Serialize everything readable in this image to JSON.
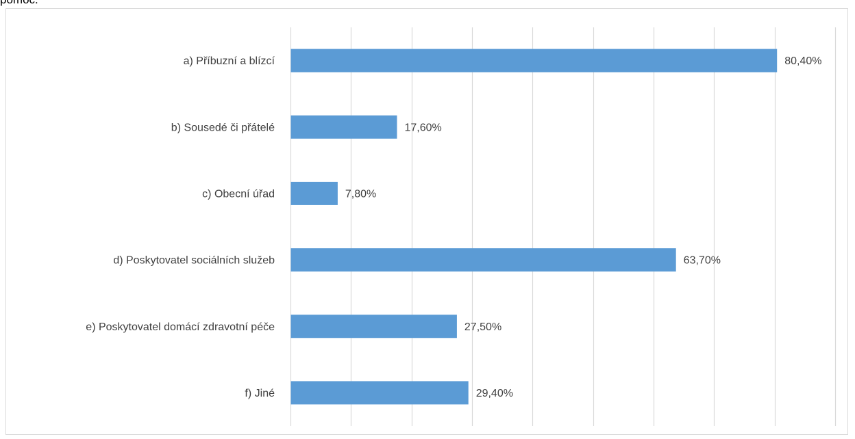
{
  "page": {
    "top_fragment": "pomoc."
  },
  "chart_data": {
    "type": "bar",
    "orientation": "horizontal",
    "categories": [
      "a) Příbuzní a blízcí",
      "b) Sousedé či přátelé",
      "c) Obecní úřad",
      "d) Poskytovatel sociálních služeb",
      "e) Poskytovatel domácí zdravotní péče",
      "f) Jiné"
    ],
    "values": [
      80.4,
      17.6,
      7.8,
      63.7,
      27.5,
      29.4
    ],
    "value_labels": [
      "80,40%",
      "17,60%",
      "7,80%",
      "63,70%",
      "27,50%",
      "29,40%"
    ],
    "xlim": [
      0,
      90
    ],
    "x_gridline_step": 10,
    "grid": "vertical",
    "bar_color": "#5b9bd5",
    "gridline_color": "#d9d9d9",
    "axis_tick_labels_visible": false
  }
}
